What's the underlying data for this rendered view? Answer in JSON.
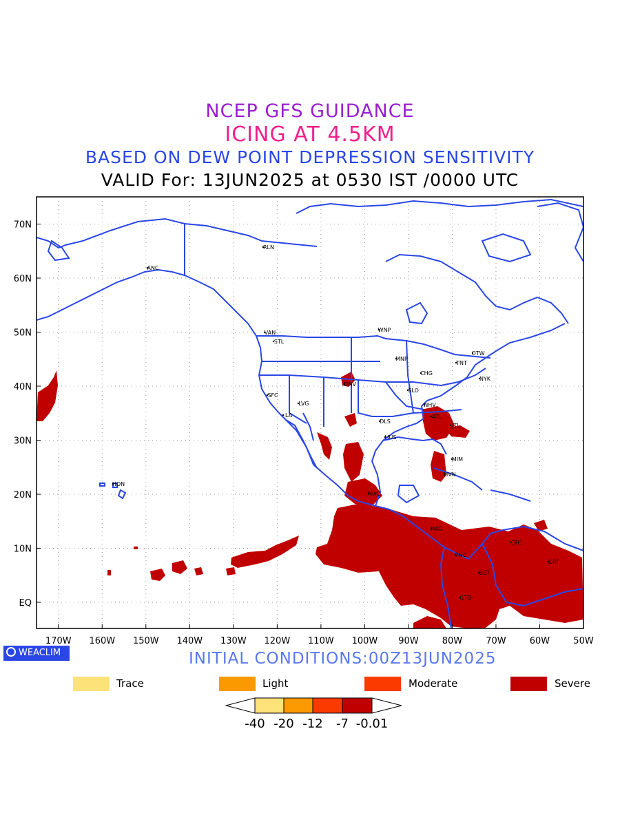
{
  "titles": {
    "line1": "NCEP GFS GUIDANCE",
    "line2": "ICING AT 4.5KM",
    "line3": "BASED ON DEW POINT DEPRESSION SENSITIVITY",
    "line4": "VALID For: 13JUN2025 at 0530 IST /0000 UTC"
  },
  "map": {
    "lat_labels": [
      "70N",
      "60N",
      "50N",
      "40N",
      "30N",
      "20N",
      "10N",
      "EQ"
    ],
    "lon_labels": [
      "170W",
      "160W",
      "150W",
      "140W",
      "130W",
      "120W",
      "110W",
      "100W",
      "90W",
      "80W",
      "70W",
      "60W",
      "50W"
    ],
    "stations": [
      "RLN",
      "ANC",
      "VAN",
      "STL",
      "WNP",
      "MNP",
      "OTW",
      "TNT",
      "NYK",
      "CHG",
      "DNV",
      "SFC",
      "LVG",
      "SLO",
      "NHV",
      "LA",
      "DLS",
      "HUS",
      "ATL",
      "JTL",
      "MIM",
      "HVN",
      "HON",
      "MXC",
      "NAG",
      "PNC",
      "CRC",
      "BGT",
      "GRT",
      "QTO"
    ],
    "colors": {
      "coast": "#2a47e6",
      "severe": "#c00000"
    }
  },
  "logo": {
    "label": "WEACLIM"
  },
  "initial_conditions": "INITIAL CONDITIONS:00Z13JUN2025",
  "legend": [
    {
      "label": "Trace",
      "color": "#fde27a"
    },
    {
      "label": "Light",
      "color": "#fa9a00"
    },
    {
      "label": "Moderate",
      "color": "#fb3a00"
    },
    {
      "label": "Severe",
      "color": "#c00000"
    }
  ],
  "colorbar": {
    "tick_labels": [
      "-40",
      "-20",
      "-12",
      "-7",
      "-0.01"
    ],
    "colors": [
      "#fde27a",
      "#fa9a00",
      "#fb3a00",
      "#c00000"
    ]
  }
}
